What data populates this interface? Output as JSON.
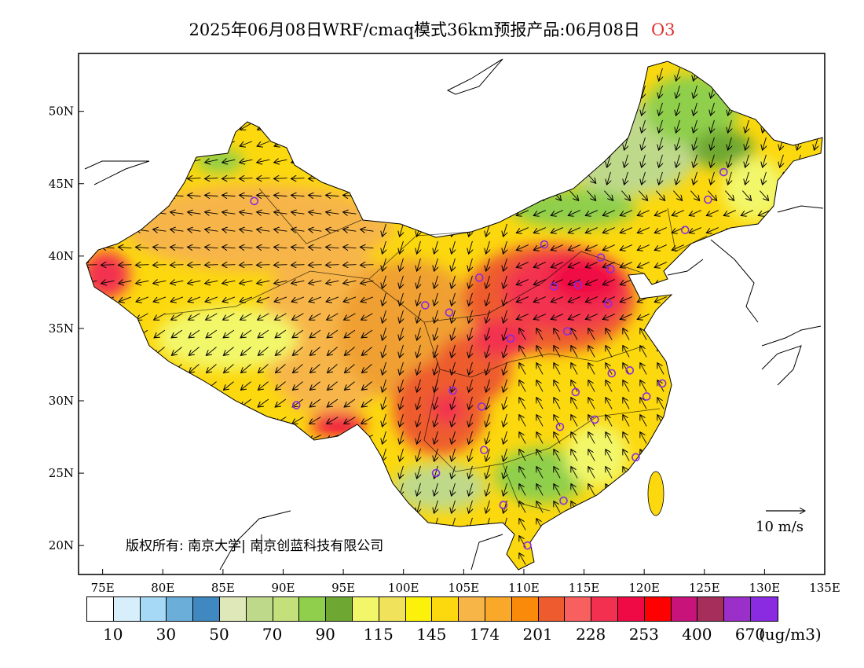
{
  "title": {
    "main": "2025年06月08日WRF/cmaq模式36km预报产品:06月08日",
    "species": "O3"
  },
  "axes": {
    "lon_ticks": [
      "75E",
      "80E",
      "85E",
      "90E",
      "95E",
      "100E",
      "105E",
      "110E",
      "115E",
      "120E",
      "125E",
      "130E",
      "135E"
    ],
    "lat_ticks": [
      "20N",
      "25N",
      "30N",
      "35N",
      "40N",
      "45N",
      "50N"
    ],
    "lon_range": [
      73,
      135
    ],
    "lat_range": [
      18,
      54
    ]
  },
  "legend": {
    "colors": [
      "#ffffff",
      "#d6effa",
      "#a5d9f5",
      "#6aaed9",
      "#3f88c0",
      "#dfe8b8",
      "#bfd98a",
      "#c3e07a",
      "#8fcf4c",
      "#6ea832",
      "#f2f76a",
      "#f0e25a",
      "#fcf10a",
      "#fcd80e",
      "#f7b548",
      "#f9a82a",
      "#f98a0a",
      "#ee5b2f",
      "#f86060",
      "#f3304f",
      "#f00a45",
      "#ff0000",
      "#c8147a",
      "#a52f5a",
      "#9b2fc9",
      "#8a2be2"
    ],
    "labels": [
      "10",
      "30",
      "50",
      "70",
      "90",
      "115",
      "145",
      "174",
      "201",
      "228",
      "253",
      "400",
      "670"
    ],
    "unit": "(ug/m3)"
  },
  "copyright": "版权所有: 南京大学| 南京创蓝科技有限公司",
  "wind_scale": "10 m/s",
  "cities": [
    {
      "lon": 87.6,
      "lat": 43.8
    },
    {
      "lon": 91.1,
      "lat": 29.7
    },
    {
      "lon": 101.8,
      "lat": 36.6
    },
    {
      "lon": 103.8,
      "lat": 36.1
    },
    {
      "lon": 106.3,
      "lat": 38.5
    },
    {
      "lon": 104.1,
      "lat": 30.7
    },
    {
      "lon": 106.5,
      "lat": 29.6
    },
    {
      "lon": 106.7,
      "lat": 26.6
    },
    {
      "lon": 102.7,
      "lat": 25.0
    },
    {
      "lon": 108.3,
      "lat": 22.8
    },
    {
      "lon": 108.9,
      "lat": 34.3
    },
    {
      "lon": 111.7,
      "lat": 40.8
    },
    {
      "lon": 112.5,
      "lat": 37.9
    },
    {
      "lon": 113.6,
      "lat": 34.8
    },
    {
      "lon": 114.3,
      "lat": 30.6
    },
    {
      "lon": 113.0,
      "lat": 28.2
    },
    {
      "lon": 113.3,
      "lat": 23.1
    },
    {
      "lon": 110.3,
      "lat": 20.0
    },
    {
      "lon": 114.5,
      "lat": 38.0
    },
    {
      "lon": 116.4,
      "lat": 39.9
    },
    {
      "lon": 117.2,
      "lat": 39.1
    },
    {
      "lon": 117.0,
      "lat": 36.7
    },
    {
      "lon": 117.3,
      "lat": 31.9
    },
    {
      "lon": 118.8,
      "lat": 32.1
    },
    {
      "lon": 120.2,
      "lat": 30.3
    },
    {
      "lon": 121.5,
      "lat": 31.2
    },
    {
      "lon": 115.9,
      "lat": 28.7
    },
    {
      "lon": 119.3,
      "lat": 26.1
    },
    {
      "lon": 123.4,
      "lat": 41.8
    },
    {
      "lon": 125.3,
      "lat": 43.9
    },
    {
      "lon": 126.6,
      "lat": 45.8
    }
  ]
}
